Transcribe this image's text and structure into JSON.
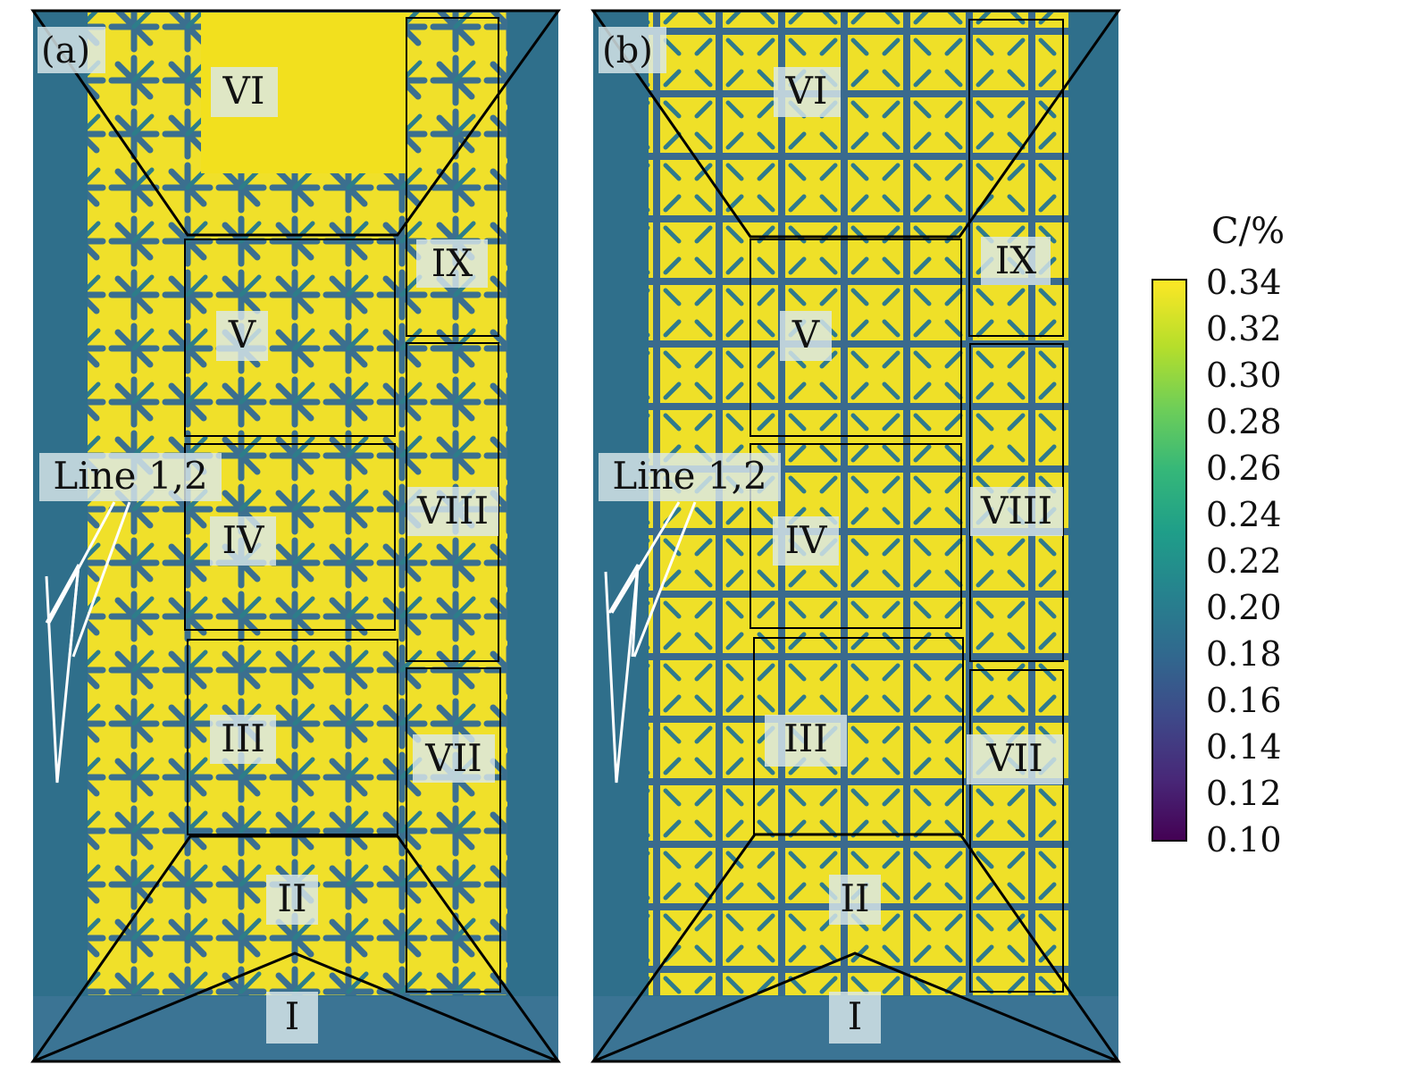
{
  "panels": [
    {
      "tag": "(a)",
      "regions": [
        "I",
        "II",
        "III",
        "IV",
        "V",
        "VI",
        "VII",
        "VIII",
        "IX"
      ],
      "line_label": "Line 1,2"
    },
    {
      "tag": "(b)",
      "regions": [
        "I",
        "II",
        "III",
        "IV",
        "V",
        "VI",
        "VII",
        "VIII",
        "IX"
      ],
      "line_label": "Line 1,2"
    }
  ],
  "colorbar": {
    "title": "C/%",
    "ticks": [
      "0.34",
      "0.32",
      "0.30",
      "0.28",
      "0.26",
      "0.24",
      "0.22",
      "0.20",
      "0.18",
      "0.16",
      "0.14",
      "0.12",
      "0.10"
    ],
    "min": 0.1,
    "max": 0.34,
    "colormap": "viridis",
    "colors": [
      "#440154",
      "#482878",
      "#3e4989",
      "#31688e",
      "#26828e",
      "#1f9e89",
      "#35b779",
      "#6ece58",
      "#b5de2b",
      "#fde725"
    ]
  },
  "colors": {
    "high": "#f2e01e",
    "low": "#3a5f8e",
    "edge": "#2e6e8a"
  }
}
